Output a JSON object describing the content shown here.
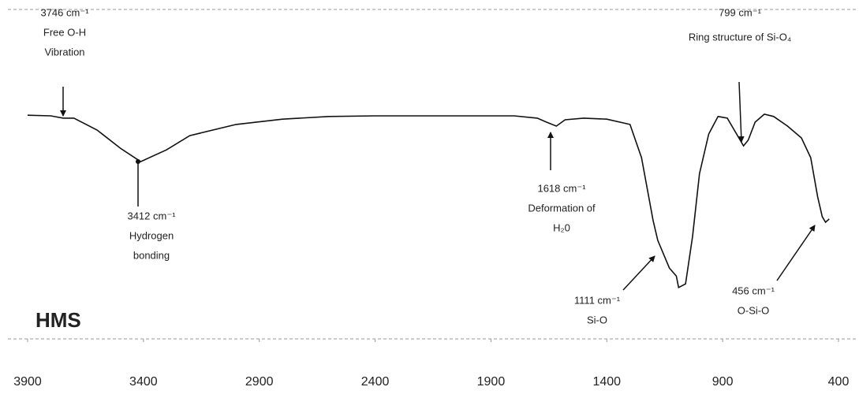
{
  "chart_data": {
    "type": "line",
    "label": "HMS",
    "color": "#111111",
    "x": [
      3900,
      3800,
      3746,
      3700,
      3600,
      3500,
      3412,
      3300,
      3200,
      3000,
      2800,
      2600,
      2400,
      2000,
      1800,
      1700,
      1660,
      1618,
      1580,
      1500,
      1400,
      1300,
      1250,
      1200,
      1180,
      1130,
      1100,
      1090,
      1060,
      1030,
      1000,
      960,
      920,
      880,
      840,
      830,
      810,
      790,
      760,
      720,
      680,
      620,
      560,
      520,
      490,
      470,
      456,
      440
    ],
    "values": [
      67.9,
      67.7,
      67.0,
      67.0,
      63.4,
      57.9,
      53.8,
      57.4,
      61.7,
      65.1,
      66.7,
      67.5,
      67.7,
      67.7,
      67.7,
      67.0,
      65.8,
      64.6,
      66.5,
      67.0,
      66.7,
      65.1,
      55.0,
      35.9,
      29.9,
      21.5,
      19.1,
      15.6,
      16.7,
      31.1,
      50.2,
      62.2,
      67.5,
      67.0,
      62.2,
      61.0,
      58.6,
      60.3,
      65.8,
      68.2,
      67.5,
      64.6,
      61.0,
      55.0,
      43.1,
      37.1,
      35.4,
      36.4
    ],
    "xlim": [
      3900,
      400
    ],
    "ylim": [
      0,
      100
    ],
    "xticks": [
      3900,
      3400,
      2900,
      2400,
      1900,
      1400,
      900,
      400
    ],
    "annotations": [
      {
        "lines": [
          "3746 cm⁻¹",
          "Free O-H",
          "Vibration"
        ]
      },
      {
        "lines": [
          "3412 cm⁻¹",
          "Hydrogen",
          "bonding"
        ]
      },
      {
        "lines": [
          "1618 cm⁻¹",
          "Deformation of",
          "H₂0"
        ]
      },
      {
        "lines": [
          "1111 cm⁻¹",
          "Si-O"
        ]
      },
      {
        "lines": [
          "799 cm⁻¹",
          "Ring structure of Si-O₄"
        ]
      },
      {
        "lines": [
          "456 cm⁻¹",
          "O-Si-O"
        ]
      }
    ]
  }
}
